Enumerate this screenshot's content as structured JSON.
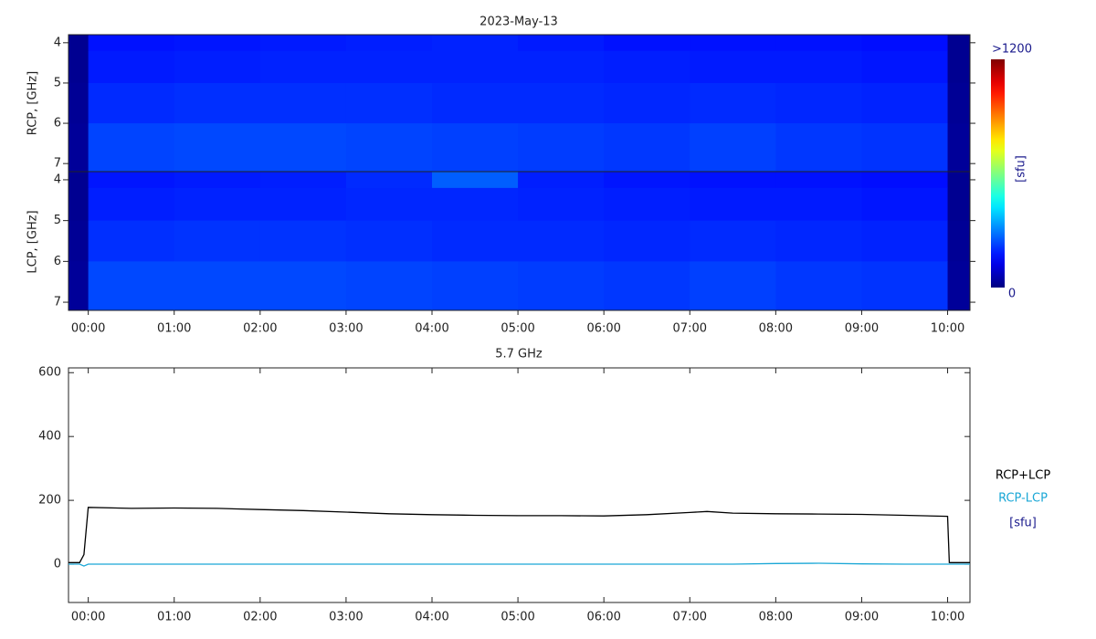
{
  "chart_data": [
    {
      "type": "heatmap",
      "title": "2023-May-13",
      "y_label": "RCP, [GHz]",
      "x_bins": [
        -0.23,
        0,
        1,
        2,
        3,
        4,
        5,
        6,
        7,
        8,
        9,
        10,
        10.26
      ],
      "y_bins": [
        3.8,
        4.2,
        5,
        6,
        7.2
      ],
      "values": [
        [
          20,
          170,
          175,
          180,
          185,
          190,
          180,
          170,
          170,
          170,
          165,
          20
        ],
        [
          20,
          180,
          185,
          190,
          190,
          190,
          190,
          185,
          180,
          180,
          175,
          20
        ],
        [
          25,
          200,
          205,
          205,
          205,
          200,
          200,
          195,
          200,
          195,
          190,
          25
        ],
        [
          30,
          230,
          235,
          235,
          230,
          225,
          220,
          215,
          225,
          215,
          210,
          30
        ]
      ],
      "xlim": [
        -0.23,
        10.26
      ],
      "ylim": [
        7.2,
        3.8
      ],
      "yticks": [
        4,
        5,
        6,
        7
      ],
      "colorbar": {
        "lim": [
          0,
          1200
        ],
        "ticks": [
          {
            "value": 1200,
            "label": ">1200"
          },
          0
        ],
        "label": "[sfu]"
      }
    },
    {
      "type": "heatmap",
      "y_label": "LCP, [GHz]",
      "x_bins": [
        -0.23,
        0,
        1,
        2,
        3,
        4,
        5,
        6,
        7,
        8,
        9,
        10,
        10.26
      ],
      "y_bins": [
        3.8,
        4.2,
        5,
        6,
        7.2
      ],
      "values": [
        [
          20,
          175,
          180,
          185,
          200,
          260,
          185,
          175,
          170,
          170,
          165,
          20
        ],
        [
          20,
          185,
          190,
          190,
          195,
          195,
          190,
          185,
          180,
          180,
          175,
          20
        ],
        [
          25,
          205,
          210,
          210,
          205,
          200,
          200,
          195,
          200,
          195,
          190,
          25
        ],
        [
          30,
          235,
          235,
          235,
          230,
          225,
          220,
          215,
          225,
          215,
          210,
          30
        ]
      ],
      "xlim": [
        -0.23,
        10.26
      ],
      "ylim": [
        7.2,
        3.8
      ],
      "yticks": [
        4,
        5,
        6,
        7
      ],
      "xticks": [
        {
          "value": 0,
          "label": "00:00"
        },
        {
          "value": 1,
          "label": "01:00"
        },
        {
          "value": 2,
          "label": "02:00"
        },
        {
          "value": 3,
          "label": "03:00"
        },
        {
          "value": 4,
          "label": "04:00"
        },
        {
          "value": 5,
          "label": "05:00"
        },
        {
          "value": 6,
          "label": "06:00"
        },
        {
          "value": 7,
          "label": "07:00"
        },
        {
          "value": 8,
          "label": "08:00"
        },
        {
          "value": 9,
          "label": "09:00"
        },
        {
          "value": 10,
          "label": "10:00"
        }
      ]
    },
    {
      "type": "line",
      "title": "5.7 GHz",
      "unit_label": "[sfu]",
      "x": [
        -0.23,
        -0.1,
        -0.05,
        0,
        0.5,
        1,
        1.5,
        2,
        2.5,
        3,
        3.5,
        4,
        4.5,
        5,
        5.5,
        6,
        6.5,
        7,
        7.2,
        7.5,
        8,
        8.5,
        9,
        9.5,
        10,
        10.02,
        10.26
      ],
      "series": [
        {
          "name": "RCP+LCP",
          "color": "#000000",
          "values": [
            5,
            5,
            30,
            178,
            175,
            176,
            175,
            171,
            168,
            163,
            158,
            155,
            153,
            152,
            152,
            151,
            155,
            162,
            165,
            160,
            158,
            157,
            156,
            153,
            150,
            5,
            5
          ]
        },
        {
          "name": "RCP-LCP",
          "color": "#1aa7d6",
          "values": [
            0,
            0,
            -6,
            0,
            0,
            0,
            0,
            0,
            0,
            0,
            0,
            0,
            0,
            0,
            0,
            0,
            0,
            0,
            0,
            0,
            2,
            3,
            1,
            0,
            0,
            0,
            0
          ]
        }
      ],
      "xlim": [
        -0.23,
        10.26
      ],
      "ylim": [
        -120,
        615
      ],
      "yticks": [
        0,
        200,
        400,
        600
      ],
      "xticks": [
        {
          "value": 0,
          "label": "00:00"
        },
        {
          "value": 1,
          "label": "01:00"
        },
        {
          "value": 2,
          "label": "02:00"
        },
        {
          "value": 3,
          "label": "03:00"
        },
        {
          "value": 4,
          "label": "04:00"
        },
        {
          "value": 5,
          "label": "05:00"
        },
        {
          "value": 6,
          "label": "06:00"
        },
        {
          "value": 7,
          "label": "07:00"
        },
        {
          "value": 8,
          "label": "08:00"
        },
        {
          "value": 9,
          "label": "09:00"
        },
        {
          "value": 10,
          "label": "10:00"
        }
      ]
    }
  ]
}
